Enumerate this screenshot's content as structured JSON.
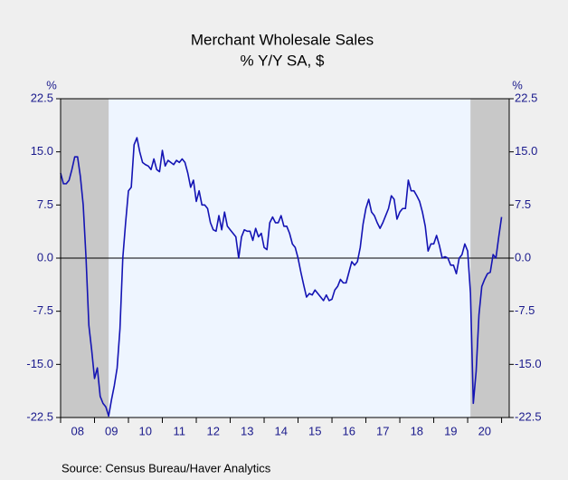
{
  "chart_data": {
    "type": "line",
    "title": "Merchant Wholesale Sales",
    "subtitle": "% Y/Y   SA, $",
    "y_unit": "%",
    "y2_unit": "%",
    "source": "Source:   Census Bureau/Haver Analytics",
    "categories": [
      null,
      null,
      null,
      null,
      null,
      null,
      "08",
      null,
      null,
      null,
      null,
      null,
      null,
      null,
      null,
      null,
      null,
      null,
      "09",
      null,
      null,
      null,
      null,
      null,
      null,
      null,
      null,
      null,
      null,
      null,
      "10",
      null,
      null,
      null,
      null,
      null,
      null,
      null,
      null,
      null,
      null,
      null,
      "11",
      null,
      null,
      null,
      null,
      null,
      null,
      null,
      null,
      null,
      null,
      null,
      "12",
      null,
      null,
      null,
      null,
      null,
      null,
      null,
      null,
      null,
      null,
      null,
      "13",
      null,
      null,
      null,
      null,
      null,
      null,
      null,
      null,
      null,
      null,
      null,
      "14",
      null,
      null,
      null,
      null,
      null,
      null,
      null,
      null,
      null,
      null,
      null,
      "15",
      null,
      null,
      null,
      null,
      null,
      null,
      null,
      null,
      null,
      null,
      null,
      "16",
      null,
      null,
      null,
      null,
      null,
      null,
      null,
      null,
      null,
      null,
      null,
      "17",
      null,
      null,
      null,
      null,
      null,
      null,
      null,
      null,
      null,
      null,
      null,
      "18",
      null,
      null,
      null,
      null,
      null,
      null,
      null,
      null,
      null,
      null,
      null,
      "19",
      null,
      null,
      null,
      null,
      null,
      null,
      null,
      null,
      null,
      null,
      null,
      "20",
      null,
      null,
      null,
      null,
      null,
      null
    ],
    "series": [
      {
        "name": "Merchant Wholesale Sales",
        "color": "#1414b4",
        "values": [
          12,
          10.5,
          10.5,
          11,
          12.5,
          14.3,
          14.3,
          11.5,
          7.5,
          0,
          -9.5,
          -13,
          -17,
          -15.5,
          -19.5,
          -20.5,
          -21,
          -22.3,
          -20,
          -18,
          -15.5,
          -10,
          0,
          5,
          9.5,
          10,
          16,
          17,
          15,
          13.5,
          13.2,
          13,
          12.5,
          14,
          12.5,
          12.2,
          15.2,
          13,
          13.8,
          13.5,
          13.2,
          13.8,
          13.5,
          14,
          13.5,
          12,
          10,
          11,
          8,
          9.5,
          7.5,
          7.5,
          7,
          5,
          4,
          3.8,
          6,
          4,
          6.5,
          4.5,
          4,
          3.5,
          3,
          0,
          3,
          4,
          3.8,
          3.8,
          2.5,
          4.2,
          3,
          3.5,
          1.5,
          1.2,
          5,
          5.8,
          5,
          5,
          6,
          4.5,
          4.5,
          3.5,
          2,
          1.5,
          0,
          -2,
          -3.8,
          -5.5,
          -5,
          -5.2,
          -4.5,
          -5,
          -5.5,
          -6,
          -5.2,
          -6,
          -5.8,
          -4.5,
          -4,
          -3,
          -3.5,
          -3.5,
          -2,
          -0.5,
          -1,
          -0.5,
          1.5,
          4.8,
          7,
          8.3,
          6.5,
          6,
          5,
          4.2,
          5,
          6,
          7,
          8.8,
          8.3,
          5.5,
          6.5,
          7,
          7,
          11,
          9.5,
          9.5,
          8.8,
          8,
          6.5,
          4.5,
          1,
          2,
          2,
          3.2,
          1.8,
          0,
          0.2,
          0,
          -1,
          -1,
          -2.2,
          0,
          0.5,
          2,
          1,
          -5,
          -20.5,
          -16,
          -8,
          -4,
          -3,
          -2.2,
          -2,
          0.5,
          0,
          3,
          5.8
        ]
      }
    ],
    "recessions": [
      [
        0,
        17
      ],
      [
        145,
        156
      ]
    ],
    "ylim": [
      -22.5,
      22.5
    ],
    "yticks": [
      22.5,
      {
        "value": 15,
        "label": "15.0"
      },
      7.5,
      {
        "value": 0,
        "label": "0.0"
      },
      -7.5,
      {
        "value": -15,
        "label": "-15.0"
      },
      -22.5
    ]
  }
}
